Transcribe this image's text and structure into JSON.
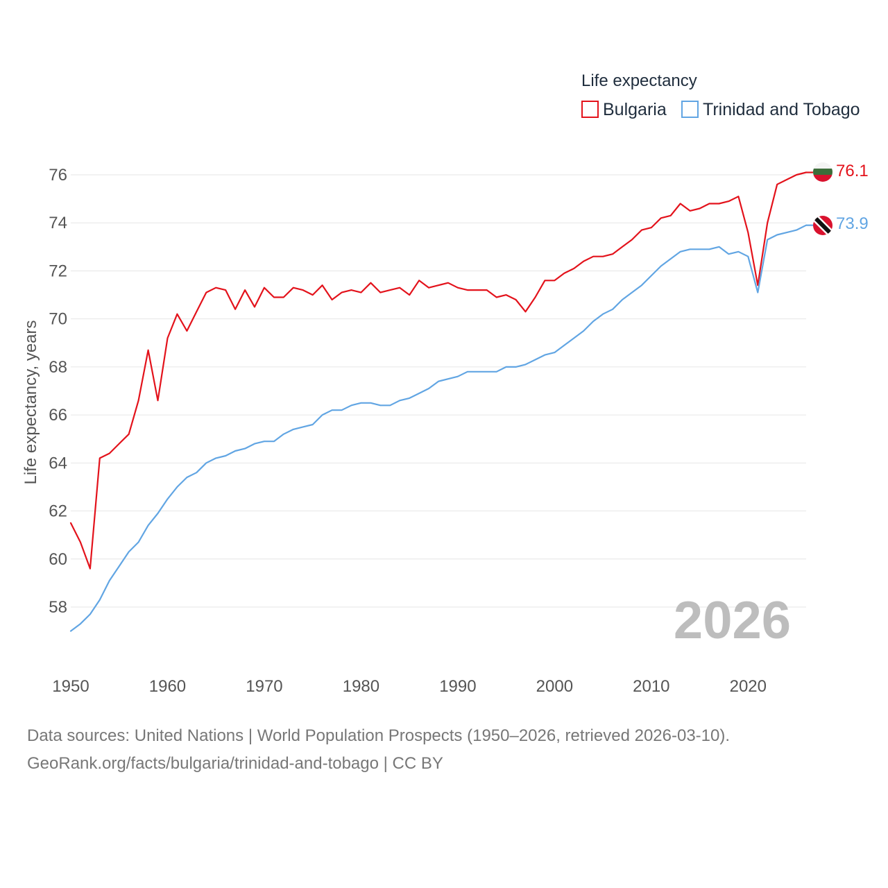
{
  "chart_data": {
    "type": "line",
    "legend_title": "Life expectancy",
    "ylabel": "Life expectancy, years",
    "xlabel": "",
    "xlim": [
      1950,
      2026
    ],
    "ylim": [
      56.5,
      76.5
    ],
    "x_ticks": [
      1950,
      1960,
      1970,
      1980,
      1990,
      2000,
      2010,
      2020
    ],
    "y_ticks": [
      58,
      60,
      62,
      64,
      66,
      68,
      70,
      72,
      74,
      76
    ],
    "legend_position": "top-right",
    "year_label": "2026",
    "x": [
      1950,
      1951,
      1952,
      1953,
      1954,
      1955,
      1956,
      1957,
      1958,
      1959,
      1960,
      1961,
      1962,
      1963,
      1964,
      1965,
      1966,
      1967,
      1968,
      1969,
      1970,
      1971,
      1972,
      1973,
      1974,
      1975,
      1976,
      1977,
      1978,
      1979,
      1980,
      1981,
      1982,
      1983,
      1984,
      1985,
      1986,
      1987,
      1988,
      1989,
      1990,
      1991,
      1992,
      1993,
      1994,
      1995,
      1996,
      1997,
      1998,
      1999,
      2000,
      2001,
      2002,
      2003,
      2004,
      2005,
      2006,
      2007,
      2008,
      2009,
      2010,
      2011,
      2012,
      2013,
      2014,
      2015,
      2016,
      2017,
      2018,
      2019,
      2020,
      2021,
      2022,
      2023,
      2024,
      2025,
      2026
    ],
    "series": [
      {
        "name": "Bulgaria",
        "color": "#e3121b",
        "end_label": "76.1",
        "flag": "bulgaria-flag-icon",
        "values": [
          61.5,
          60.7,
          59.6,
          64.2,
          64.4,
          64.8,
          65.2,
          66.6,
          68.7,
          66.6,
          69.2,
          70.2,
          69.5,
          70.3,
          71.1,
          71.3,
          71.2,
          70.4,
          71.2,
          70.5,
          71.3,
          70.9,
          70.9,
          71.3,
          71.2,
          71.0,
          71.4,
          70.8,
          71.1,
          71.2,
          71.1,
          71.5,
          71.1,
          71.2,
          71.3,
          71.0,
          71.6,
          71.3,
          71.4,
          71.5,
          71.3,
          71.2,
          71.2,
          71.2,
          70.9,
          71.0,
          70.8,
          70.3,
          70.9,
          71.6,
          71.6,
          71.9,
          72.1,
          72.4,
          72.6,
          72.6,
          72.7,
          73.0,
          73.3,
          73.7,
          73.8,
          74.2,
          74.3,
          74.8,
          74.5,
          74.6,
          74.8,
          74.8,
          74.9,
          75.1,
          73.6,
          71.4,
          74.0,
          75.6,
          75.8,
          76.0,
          76.1
        ]
      },
      {
        "name": "Trinidad and Tobago",
        "color": "#61a5e3",
        "end_label": "73.9",
        "flag": "trinidad-and-tobago-flag-icon",
        "values": [
          57.0,
          57.3,
          57.7,
          58.3,
          59.1,
          59.7,
          60.3,
          60.7,
          61.4,
          61.9,
          62.5,
          63.0,
          63.4,
          63.6,
          64.0,
          64.2,
          64.3,
          64.5,
          64.6,
          64.8,
          64.9,
          64.9,
          65.2,
          65.4,
          65.5,
          65.6,
          66.0,
          66.2,
          66.2,
          66.4,
          66.5,
          66.5,
          66.4,
          66.4,
          66.6,
          66.7,
          66.9,
          67.1,
          67.4,
          67.5,
          67.6,
          67.8,
          67.8,
          67.8,
          67.8,
          68.0,
          68.0,
          68.1,
          68.3,
          68.5,
          68.6,
          68.9,
          69.2,
          69.5,
          69.9,
          70.2,
          70.4,
          70.8,
          71.1,
          71.4,
          71.8,
          72.2,
          72.5,
          72.8,
          72.9,
          72.9,
          72.9,
          73.0,
          72.7,
          72.8,
          72.6,
          71.1,
          73.3,
          73.5,
          73.6,
          73.7,
          73.9
        ]
      }
    ]
  },
  "source": {
    "line1": "Data sources: United Nations | World Population Prospects (1950–2026, retrieved 2026-03-10).",
    "line2": "GeoRank.org/facts/bulgaria/trinidad-and-tobago | CC BY"
  }
}
